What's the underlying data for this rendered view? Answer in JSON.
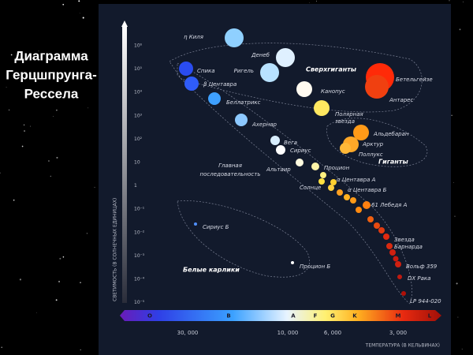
{
  "title": [
    "Диаграмма",
    "Герцшпрунга-",
    "Рессела"
  ],
  "y_axis": {
    "title": "СВЕТИМОСТЬ (В СОЛНЕЧНЫХ ЕДИНИЦАХ)",
    "ticks": [
      "10⁶",
      "10⁵",
      "10⁴",
      "10³",
      "10²",
      "10",
      "1",
      "10⁻¹",
      "10⁻²",
      "10⁻³",
      "10⁻⁴",
      "10⁻⁵"
    ]
  },
  "x_axis": {
    "title": "ТЕМПЕРАТУРА (В КЕЛЬВИНАХ)",
    "spectral_classes": [
      "O",
      "B",
      "A",
      "F",
      "G",
      "K",
      "M",
      "L"
    ],
    "temperatures": [
      "30, 000",
      "10, 000",
      "6, 000",
      "3, 000"
    ]
  },
  "regions": [
    [
      "Сверхгиганты"
    ],
    [
      "Гиганты"
    ],
    [
      "Главная",
      "последовательность"
    ],
    [
      "Белые карлики"
    ]
  ],
  "stars": [
    [
      "η Киля"
    ],
    [
      "Денеб"
    ],
    [
      "Ригель"
    ],
    [
      "Спика"
    ],
    [
      "β Центавра"
    ],
    [
      "Беллатрикс"
    ],
    [
      "Ахернар"
    ],
    [
      "Вега"
    ],
    [
      "Сириус"
    ],
    [
      "Альтаир"
    ],
    [
      "Процион"
    ],
    [
      "Солнце"
    ],
    [
      "α Центавра А"
    ],
    [
      "α Центавра Б"
    ],
    [
      "61 Лебедя А"
    ],
    [
      "Звезда",
      "Барнарда"
    ],
    [
      "Вольф 359"
    ],
    [
      "DX Рака"
    ],
    [
      "LP 944-020"
    ],
    [
      "Сириус Б"
    ],
    [
      "Процион Б"
    ],
    [
      "Канопус"
    ],
    [
      "Полярная",
      "звезда"
    ],
    [
      "Бетельгейзе"
    ],
    [
      "Антарес"
    ],
    [
      "Альдебаран"
    ],
    [
      "Арктур"
    ],
    [
      "Поллукс"
    ]
  ]
}
